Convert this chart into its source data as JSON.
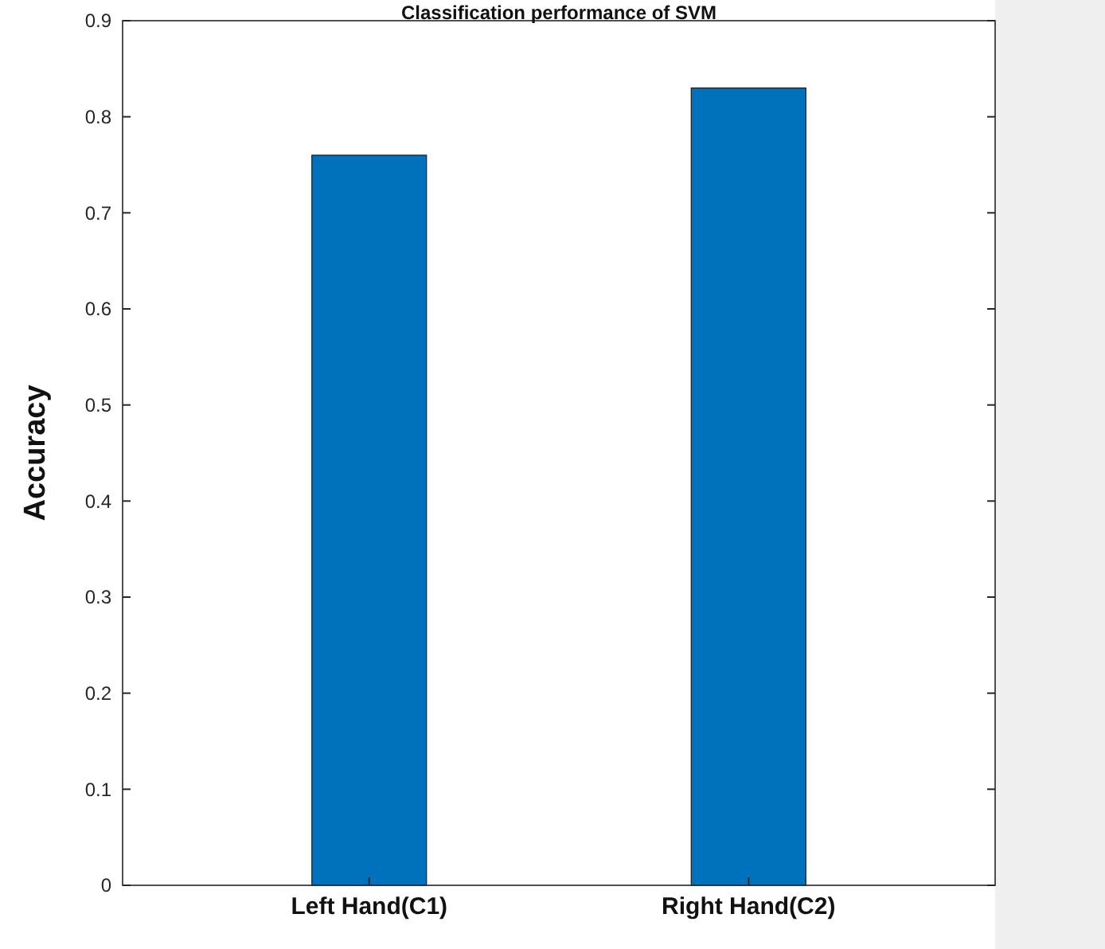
{
  "chart_data": {
    "type": "bar",
    "title": "Classification performance of SVM",
    "ylabel": "Accuracy",
    "categories": [
      "Left Hand(C1)",
      "Right Hand(C2)"
    ],
    "values": [
      0.76,
      0.83
    ],
    "color": "#0072bd",
    "ylim": [
      0,
      0.9
    ],
    "yticks": [
      0,
      0.1,
      0.2,
      0.3,
      0.4,
      0.5,
      0.6,
      0.7,
      0.8,
      0.9
    ],
    "grid": false
  }
}
